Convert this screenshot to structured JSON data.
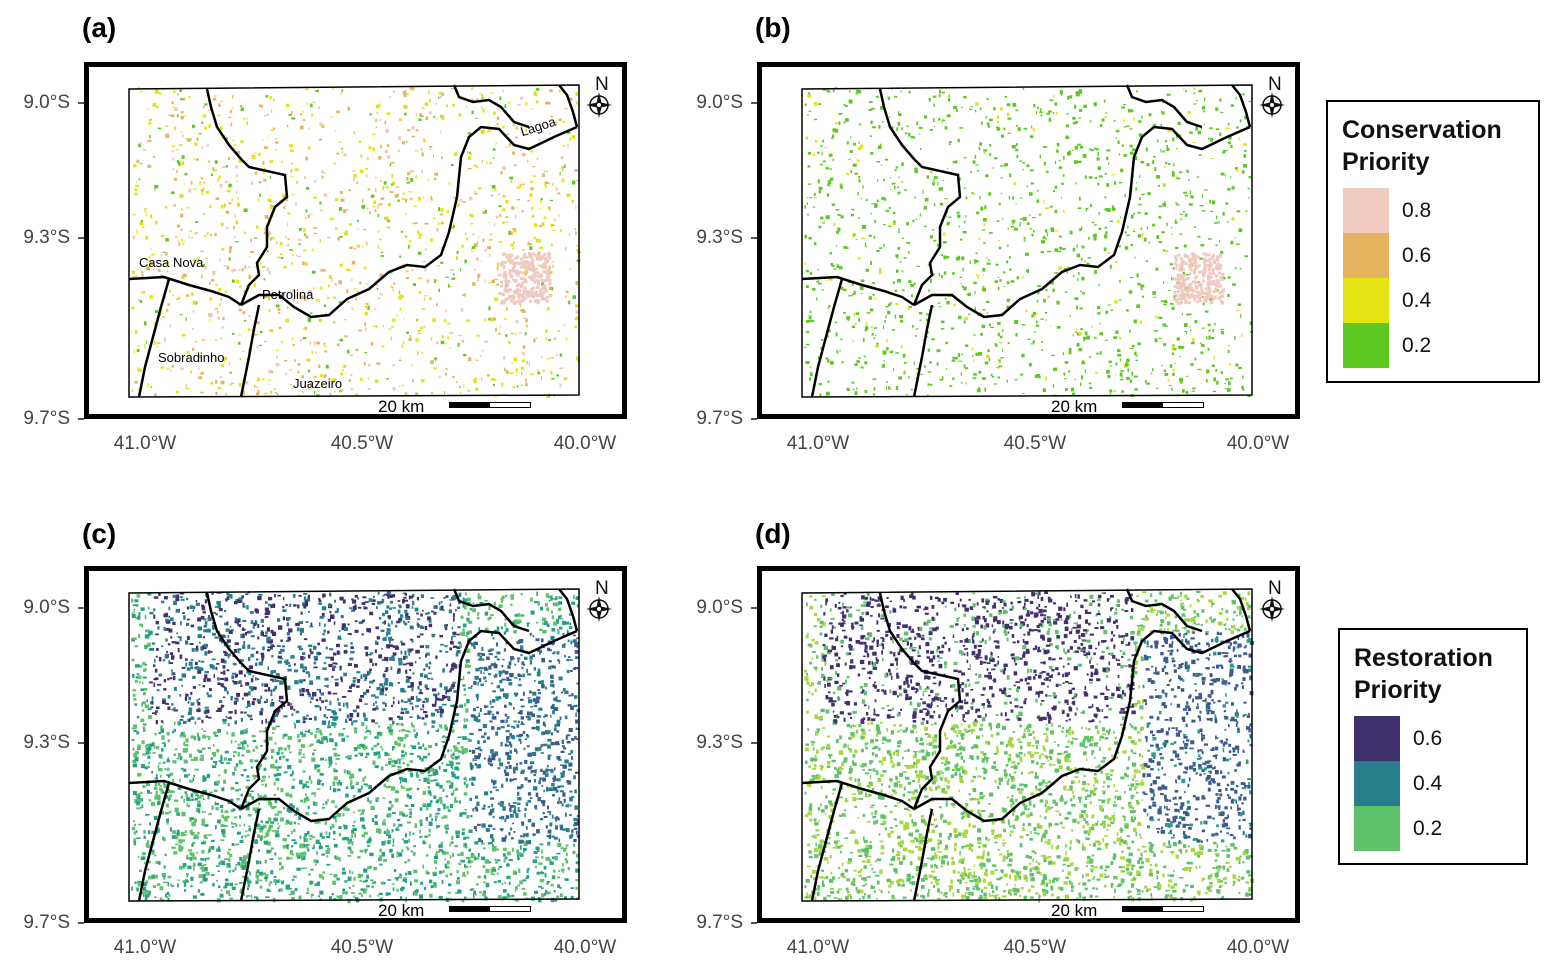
{
  "panels": [
    {
      "label": "(a)",
      "scheme": "conservation",
      "variant": "a"
    },
    {
      "label": "(b)",
      "scheme": "conservation",
      "variant": "b"
    },
    {
      "label": "(c)",
      "scheme": "restoration",
      "variant": "c"
    },
    {
      "label": "(d)",
      "scheme": "restoration",
      "variant": "d"
    }
  ],
  "axes": {
    "y_ticks": [
      "9.0°S",
      "9.3°S",
      "9.7°S"
    ],
    "x_ticks": [
      "41.0°W",
      "40.5°W",
      "40.0°W"
    ]
  },
  "scale_bar_label": "20 km",
  "north_label": "N",
  "place_names": {
    "casa_nova": "Casa Nova",
    "petrolina": "Petrolina",
    "sobradinho": "Sobradinho",
    "juazeiro": "Juazeiro",
    "lagoa": "Lagoa"
  },
  "legends": {
    "conservation": {
      "title_line1": "Conservation",
      "title_line2": "Priority",
      "items": [
        {
          "value": "0.8",
          "color": "#f0c9c1"
        },
        {
          "value": "0.6",
          "color": "#e6b35f"
        },
        {
          "value": "0.4",
          "color": "#e4e414"
        },
        {
          "value": "0.2",
          "color": "#5cc822"
        }
      ]
    },
    "restoration": {
      "title_line1": "Restoration",
      "title_line2": "Priority",
      "items": [
        {
          "value": "0.6",
          "color": "#41306e"
        },
        {
          "value": "0.4",
          "color": "#277f8e"
        },
        {
          "value": "0.2",
          "color": "#5ec26a"
        }
      ]
    }
  },
  "colors": {
    "conservation_palette": [
      "#5cc822",
      "#e4e414",
      "#e6b35f",
      "#f0c9c1"
    ],
    "restoration_palette": [
      "#41306e",
      "#3d5a8c",
      "#277f8e",
      "#26a184",
      "#5ec26a",
      "#a8d840"
    ]
  }
}
